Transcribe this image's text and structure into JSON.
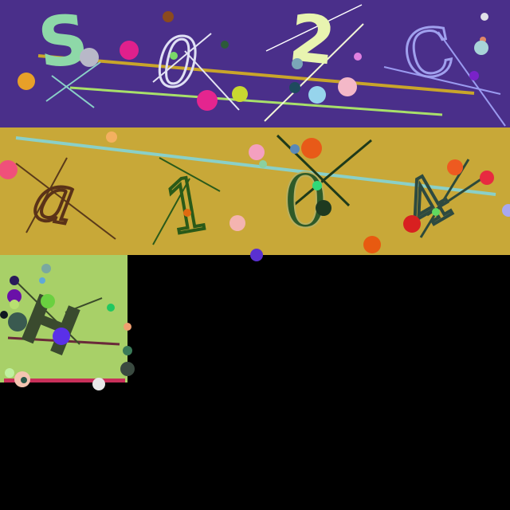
{
  "captcha": {
    "row1": {
      "background": "#4a2f8a",
      "chars": [
        "S",
        "0",
        "2",
        "C"
      ]
    },
    "row2": {
      "background": "#c8a838",
      "chars": [
        "a",
        "1",
        "0",
        "4"
      ]
    },
    "row3": {
      "background": "#a8d068",
      "chars": [
        "H"
      ]
    }
  }
}
